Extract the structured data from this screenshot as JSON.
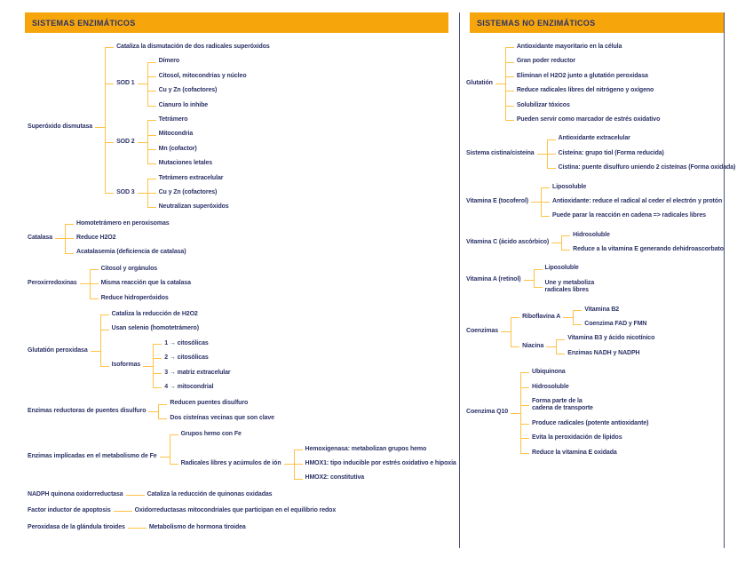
{
  "colors": {
    "header_bg": "#f6a50b",
    "text": "#2d3367",
    "connector": "#ffc145",
    "border": "#4a5178"
  },
  "panels": [
    {
      "id": "enzymatic",
      "title": "SISTEMAS ENZIMÁTICOS",
      "tree": [
        {
          "label": "Superóxido dismutasa",
          "children": [
            {
              "label": "Cataliza la dismutación de dos radicales superóxidos"
            },
            {
              "label": "SOD 1",
              "children": [
                {
                  "label": "Dímero"
                },
                {
                  "label": "Citosol, mitocondrias y núcleo"
                },
                {
                  "label": "Cu y Zn (cofactores)"
                },
                {
                  "label": "Cianuro lo inhibe"
                }
              ]
            },
            {
              "label": "SOD 2",
              "children": [
                {
                  "label": "Tetrámero"
                },
                {
                  "label": "Mitocondria"
                },
                {
                  "label": "Mn (cofactor)"
                },
                {
                  "label": "Mutaciones letales"
                }
              ]
            },
            {
              "label": "SOD 3",
              "children": [
                {
                  "label": "Tetrámero extracelular"
                },
                {
                  "label": "Cu y Zn (cofactores)"
                },
                {
                  "label": "Neutralizan superóxidos"
                }
              ]
            }
          ]
        },
        {
          "label": "Catalasa",
          "children": [
            {
              "label": "Homotetrámero en peroxisomas"
            },
            {
              "label": "Reduce H2O2"
            },
            {
              "label": "Acatalasemia (deficiencia de catalasa)"
            }
          ]
        },
        {
          "label": "Peroxirredoxinas",
          "children": [
            {
              "label": "Citosol y orgánulos"
            },
            {
              "label": "Misma reacción que la catalasa"
            },
            {
              "label": "Reduce hidroperóxidos"
            }
          ]
        },
        {
          "label": "Glutatión peroxidasa",
          "children": [
            {
              "label": "Cataliza la reducción de H2O2"
            },
            {
              "label": "Usan selenio (homotetrámero)"
            },
            {
              "label": "Isoformas",
              "children": [
                {
                  "label": "1 → citosólicas"
                },
                {
                  "label": "2 → citosólicas"
                },
                {
                  "label": "3 → matriz extracelular"
                },
                {
                  "label": "4 → mitocondrial"
                }
              ]
            }
          ]
        },
        {
          "label": "Enzimas reductoras de puentes disulfuro",
          "children": [
            {
              "label": "Reducen puentes disulfuro"
            },
            {
              "label": "Dos cisteínas vecinas que son clave"
            }
          ]
        },
        {
          "label": "Enzimas implicadas en el metabolismo de Fe",
          "children": [
            {
              "label": "Grupos hemo con Fe"
            },
            {
              "label": "Radicales libres y acúmulos de ión",
              "children": [
                {
                  "label": "Hemoxigenasa: metabolizan grupos hemo"
                },
                {
                  "label": "HMOX1: tipo inducible por estrés oxidativo e hipoxia"
                },
                {
                  "label": "HMOX2: constitutiva"
                }
              ]
            }
          ]
        },
        {
          "label": "NADPH quinona oxidorreductasa",
          "children": [
            {
              "label": "Cataliza la reducción de quinonas oxidadas"
            }
          ]
        },
        {
          "label": "Factor inductor de apoptosis",
          "children": [
            {
              "label": "Oxidorreductasas mitocondriales que participan en el equilibrio redox"
            }
          ]
        },
        {
          "label": "Peroxidasa de la glándula tiroides",
          "children": [
            {
              "label": "Metabolismo de hormona tiroidea"
            }
          ]
        }
      ]
    },
    {
      "id": "non_enzymatic",
      "title": "SISTEMAS NO ENZIMÁTICOS",
      "tree": [
        {
          "label": "Glutatión",
          "children": [
            {
              "label": "Antioxidante mayoritario en la célula"
            },
            {
              "label": "Gran poder reductor"
            },
            {
              "label": "Eliminan el H2O2 junto a glutatión peroxidasa"
            },
            {
              "label": "Reduce radicales libres del nitrógeno y oxígeno"
            },
            {
              "label": "Solubilizar tóxicos"
            },
            {
              "label": "Pueden servir como marcador de estrés oxidativo"
            }
          ]
        },
        {
          "label": "Sistema cistina/cisteína",
          "children": [
            {
              "label": "Antioxidante extracelular"
            },
            {
              "label": "Cisteína: grupo tiol (Forma reducida)"
            },
            {
              "label": "Cistina: puente disulfuro uniendo 2 cisteínas (Forma oxidada)"
            }
          ]
        },
        {
          "label": "Vitamina E (tocoferol)",
          "children": [
            {
              "label": "Liposoluble"
            },
            {
              "label": "Antioxidante: reduce el radical al ceder el electrón y protón"
            },
            {
              "label": "Puede parar la reacción en cadena => radicales libres"
            }
          ]
        },
        {
          "label": "Vitamina C (ácido ascórbico)",
          "children": [
            {
              "label": "Hidrosoluble"
            },
            {
              "label": "Reduce a la vitamina E generando dehidroascorbato"
            }
          ]
        },
        {
          "label": "Vitamina A (retinol)",
          "children": [
            {
              "label": "Liposoluble"
            },
            {
              "label": "Une y metaboliza radicales libres",
              "wrap": true
            }
          ]
        },
        {
          "label": "Coenzimas",
          "children": [
            {
              "label": "Riboflavina A",
              "children": [
                {
                  "label": "Vitamina B2"
                },
                {
                  "label": "Coenzima FAD y FMN"
                }
              ]
            },
            {
              "label": "Niacina",
              "children": [
                {
                  "label": "Vitamina B3 y ácido nicotínico"
                },
                {
                  "label": "Enzimas NADH y NADPH"
                }
              ]
            }
          ]
        },
        {
          "label": "Coenzima Q10",
          "children": [
            {
              "label": "Ubiquinona"
            },
            {
              "label": "Hidrosoluble"
            },
            {
              "label": "Forma parte de la cadena de transporte",
              "wrap": true
            },
            {
              "label": "Produce radicales (potente antioxidante)"
            },
            {
              "label": "Evita la peroxidación de lípidos"
            },
            {
              "label": "Reduce la vitamina E oxidada"
            }
          ]
        }
      ]
    }
  ]
}
